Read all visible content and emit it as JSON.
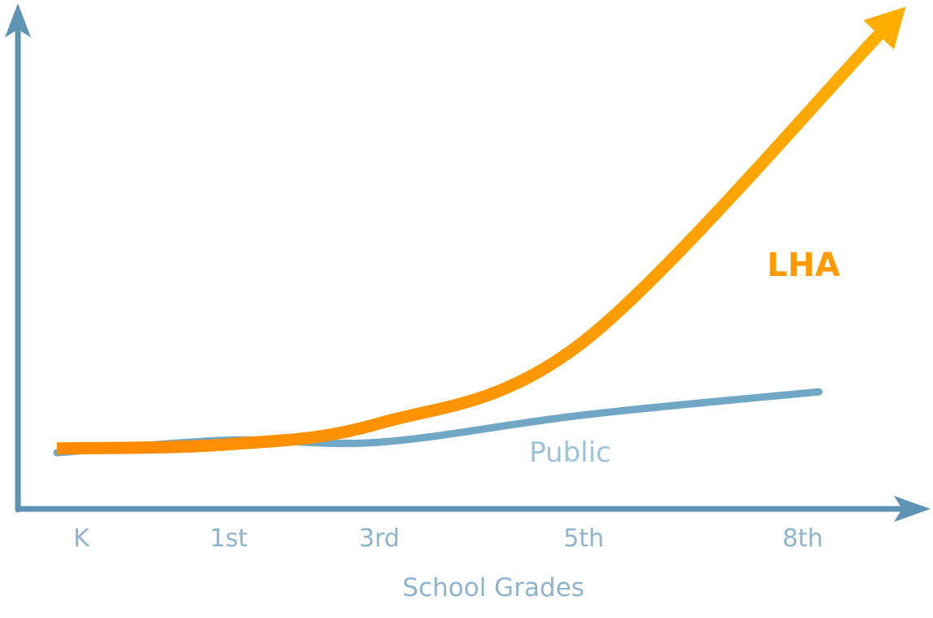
{
  "chart_data": {
    "type": "line",
    "xlabel": "School Grades",
    "ylabel": "",
    "categories": [
      "K",
      "1st",
      "3rd",
      "5th",
      "8th"
    ],
    "series": [
      {
        "name": "LHA",
        "color": "#ff9a00",
        "values": [
          0.2,
          0.4,
          1.4,
          5.3,
          20.0
        ]
      },
      {
        "name": "Public",
        "color": "#6fa7c4",
        "values": [
          0.0,
          0.6,
          0.5,
          1.8,
          2.9
        ]
      }
    ],
    "ylim": [
      0,
      20
    ],
    "grid": false,
    "legend": "none",
    "axis_color": "#5e93b4"
  }
}
